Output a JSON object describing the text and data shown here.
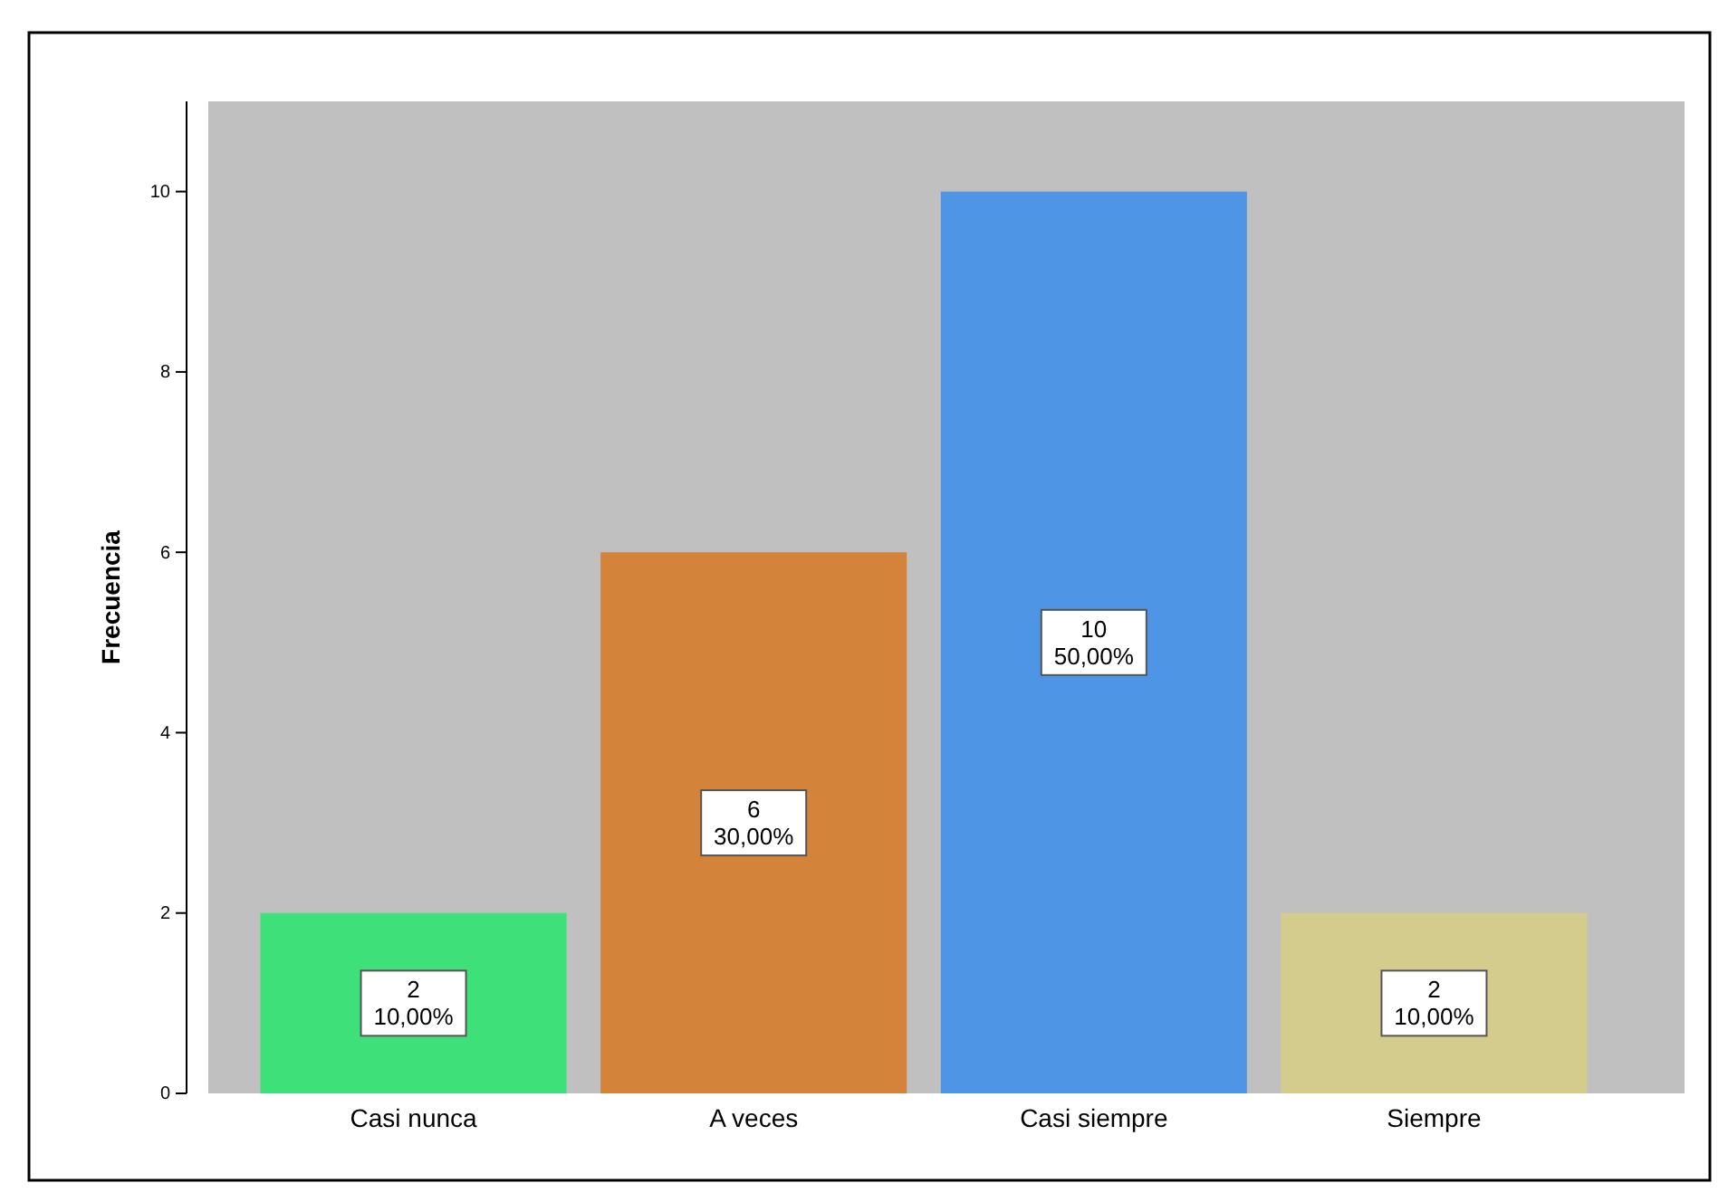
{
  "chart_data": {
    "type": "bar",
    "ylabel": "Frecuencia",
    "categories": [
      "Casi nunca",
      "A veces",
      "Casi siempre",
      "Siempre"
    ],
    "values": [
      2,
      6,
      10,
      2
    ],
    "colors": [
      "#3ee07a",
      "#d4843a",
      "#4f95e6",
      "#d3cc8c"
    ],
    "value_labels": [
      "2\n10,00%",
      "6\n30,00%",
      "10\n50,00%",
      "2\n10,00%"
    ],
    "ylim": [
      0,
      11
    ],
    "yticks": [
      0,
      2,
      4,
      6,
      8,
      10
    ]
  }
}
